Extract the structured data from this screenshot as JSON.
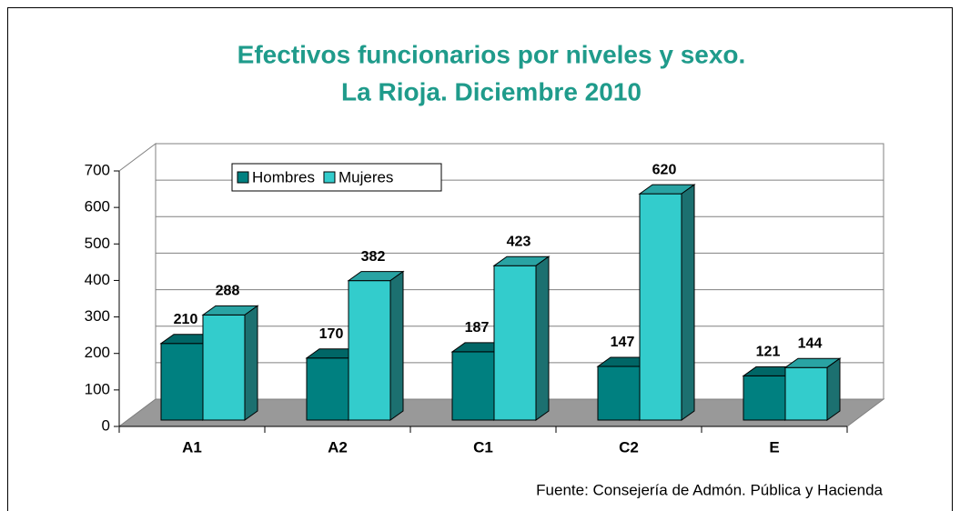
{
  "chart_data": {
    "type": "bar",
    "title": "Efectivos funcionarios por niveles y sexo.",
    "subtitle": "La Rioja. Diciembre 2010",
    "source": "Fuente: Consejería de Admón. Pública y Hacienda",
    "categories": [
      "A1",
      "A2",
      "C1",
      "C2",
      "E"
    ],
    "series": [
      {
        "name": "Hombres",
        "color": "#008080",
        "values": [
          210,
          170,
          187,
          147,
          121
        ]
      },
      {
        "name": "Mujeres",
        "color": "#33cccc",
        "values": [
          288,
          382,
          423,
          620,
          144
        ]
      }
    ],
    "ylim": [
      0,
      700
    ],
    "yticks": [
      0,
      100,
      200,
      300,
      400,
      500,
      600,
      700
    ],
    "grid": true,
    "legend": "top-left"
  }
}
